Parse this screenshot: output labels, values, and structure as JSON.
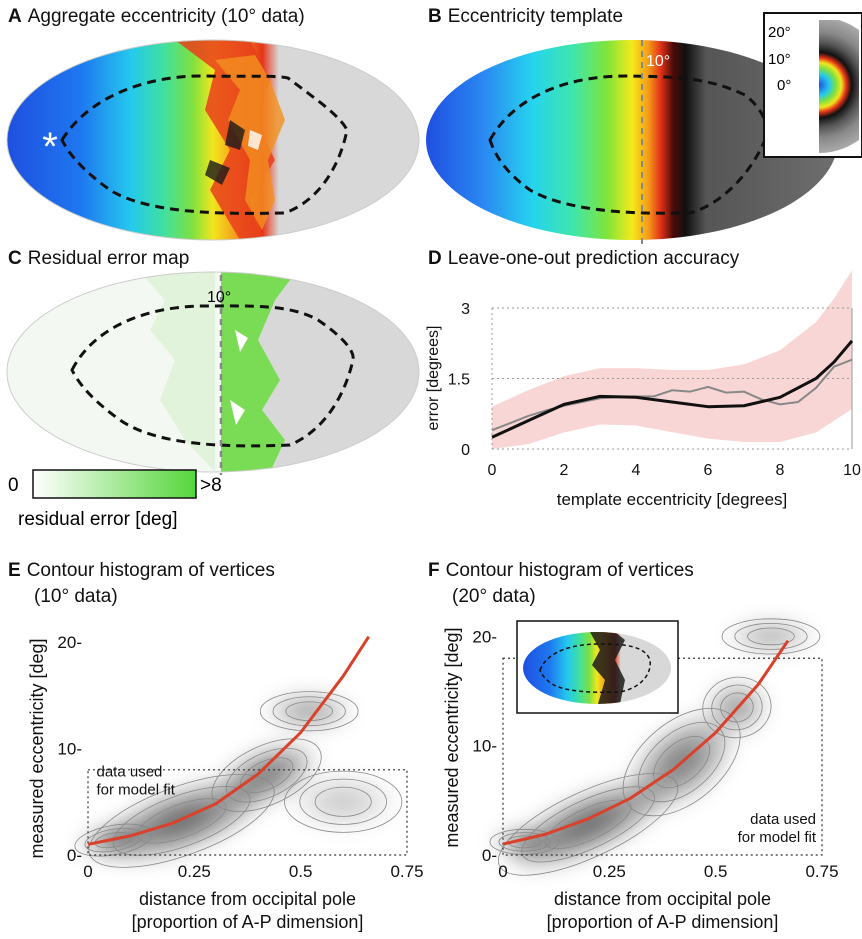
{
  "panels": {
    "A": {
      "letter": "A",
      "title": "Aggregate eccentricity (10° data)",
      "marker": "*"
    },
    "B": {
      "letter": "B",
      "title": "Eccentricity template",
      "line_label": "10°",
      "inset_labels": [
        "20°",
        "10°",
        "0°"
      ]
    },
    "C": {
      "letter": "C",
      "title": "Residual error map",
      "line_label": "10°",
      "colorbar_min": "0",
      "colorbar_max": ">8",
      "colorbar_label": "residual error [deg]"
    },
    "D": {
      "letter": "D",
      "title": "Leave-one-out prediction accuracy"
    },
    "E": {
      "letter": "E",
      "title_line1": "Contour histogram of vertices",
      "title_line2": "(10° data)",
      "box_label_line1": "data used",
      "box_label_line2": "for model fit"
    },
    "F": {
      "letter": "F",
      "title_line1": "Contour histogram of vertices",
      "title_line2": "(20° data)",
      "box_label_line1": "data used",
      "box_label_line2": "for model fit"
    }
  },
  "colors": {
    "fit_curve": "#d9412b",
    "fit_band": "#f7c8c8",
    "mean_line": "#111111",
    "data_line": "#888888"
  },
  "chart_data": [
    {
      "id": "D",
      "type": "line",
      "xlabel": "template eccentricity [degrees]",
      "ylabel": "error [degrees]",
      "xlim": [
        0,
        10
      ],
      "ylim": [
        0,
        3
      ],
      "x_ticks": [
        0,
        2,
        4,
        6,
        8,
        10
      ],
      "x_tick_labels": [
        "0",
        "2",
        "4",
        "6",
        "8",
        "10"
      ],
      "y_ticks": [
        0,
        1.5,
        3
      ],
      "y_tick_labels": [
        "0",
        "1.5",
        "3"
      ],
      "grid_lines_y": [
        1.5,
        3
      ],
      "series": [
        {
          "role": "fit",
          "x": [
            0,
            1,
            2,
            3,
            4,
            5,
            6,
            7,
            8,
            9,
            9.5,
            10
          ],
          "y": [
            0.25,
            0.6,
            0.95,
            1.12,
            1.1,
            1.0,
            0.9,
            0.92,
            1.1,
            1.5,
            1.85,
            2.3
          ]
        },
        {
          "role": "band_upper",
          "x": [
            0,
            1,
            2,
            3,
            4,
            5,
            6,
            7,
            8,
            9,
            9.5,
            10
          ],
          "y": [
            0.9,
            1.25,
            1.55,
            1.72,
            1.72,
            1.68,
            1.68,
            1.8,
            2.1,
            2.7,
            3.2,
            3.8
          ]
        },
        {
          "role": "band_lower",
          "x": [
            0,
            1,
            2,
            3,
            4,
            5,
            6,
            7,
            8,
            9,
            9.5,
            10
          ],
          "y": [
            0.0,
            0.1,
            0.35,
            0.52,
            0.5,
            0.36,
            0.22,
            0.15,
            0.15,
            0.35,
            0.6,
            0.85
          ]
        },
        {
          "role": "data",
          "x": [
            0,
            0.5,
            1,
            1.5,
            2,
            2.5,
            3,
            3.5,
            4,
            4.5,
            5,
            5.5,
            6,
            6.5,
            7,
            7.5,
            8,
            8.5,
            9,
            9.5,
            10
          ],
          "y": [
            0.4,
            0.55,
            0.7,
            0.82,
            0.92,
            1.0,
            1.08,
            1.1,
            1.12,
            1.12,
            1.25,
            1.22,
            1.32,
            1.2,
            1.22,
            1.05,
            0.95,
            1.0,
            1.3,
            1.75,
            1.9
          ]
        }
      ]
    },
    {
      "id": "E",
      "type": "heatmap",
      "xlabel": "distance from occipital pole",
      "xlabel2": "[proportion of A-P dimension]",
      "ylabel": "measured eccentricity [deg]",
      "xlim": [
        0,
        0.75
      ],
      "ylim": [
        0,
        20
      ],
      "x_ticks": [
        0,
        0.25,
        0.5,
        0.75
      ],
      "x_tick_labels": [
        "0",
        "0.25",
        "0.5",
        "0.75"
      ],
      "y_ticks": [
        0,
        10,
        20
      ],
      "y_tick_labels": [
        "0",
        "10",
        "20"
      ],
      "fit_box": {
        "x": [
          0,
          0.75
        ],
        "y": [
          0,
          8
        ]
      },
      "fit_curve": {
        "x": [
          0,
          0.1,
          0.2,
          0.3,
          0.4,
          0.5,
          0.6,
          0.66
        ],
        "y": [
          1.0,
          1.8,
          3.0,
          4.8,
          7.6,
          11.5,
          16.8,
          20.5
        ]
      },
      "blobs": [
        {
          "x": 0.22,
          "y": 3.2,
          "rx": 0.2,
          "ry": 2.8,
          "rot": -20,
          "w": 1.0
        },
        {
          "x": 0.42,
          "y": 7.5,
          "rx": 0.12,
          "ry": 2.4,
          "rot": -25,
          "w": 0.85
        },
        {
          "x": 0.06,
          "y": 1.4,
          "rx": 0.08,
          "ry": 1.2,
          "rot": -10,
          "w": 0.9
        },
        {
          "x": 0.52,
          "y": 13.5,
          "rx": 0.1,
          "ry": 1.6,
          "rot": 0,
          "w": 0.6
        },
        {
          "x": 0.6,
          "y": 5.0,
          "rx": 0.12,
          "ry": 2.5,
          "rot": 0,
          "w": 0.3
        }
      ]
    },
    {
      "id": "F",
      "type": "heatmap",
      "xlabel": "distance from occipital pole",
      "xlabel2": "[proportion of A-P dimension]",
      "ylabel": "measured eccentricity [deg]",
      "xlim": [
        0,
        0.75
      ],
      "ylim": [
        0,
        21.5
      ],
      "x_ticks": [
        0,
        0.25,
        0.5,
        0.75
      ],
      "x_tick_labels": [
        "0",
        "0.25",
        "0.5",
        "0.75"
      ],
      "y_ticks": [
        0,
        10,
        20
      ],
      "y_tick_labels": [
        "0",
        "10",
        "20"
      ],
      "fit_box": {
        "x": [
          0,
          0.75
        ],
        "y": [
          0,
          18
        ]
      },
      "fit_curve": {
        "x": [
          0,
          0.1,
          0.2,
          0.3,
          0.4,
          0.5,
          0.6,
          0.67
        ],
        "y": [
          1.0,
          1.9,
          3.3,
          5.2,
          7.8,
          11.2,
          15.6,
          19.6
        ]
      },
      "blobs": [
        {
          "x": 0.2,
          "y": 2.8,
          "rx": 0.2,
          "ry": 2.6,
          "rot": -25,
          "w": 1.0
        },
        {
          "x": 0.42,
          "y": 8.5,
          "rx": 0.14,
          "ry": 3.2,
          "rot": -40,
          "w": 0.8
        },
        {
          "x": 0.55,
          "y": 13.5,
          "rx": 0.07,
          "ry": 2.4,
          "rot": -10,
          "w": 0.6
        },
        {
          "x": 0.63,
          "y": 20.0,
          "rx": 0.1,
          "ry": 1.4,
          "rot": 0,
          "w": 0.5
        },
        {
          "x": 0.05,
          "y": 1.2,
          "rx": 0.07,
          "ry": 1.0,
          "rot": 0,
          "w": 0.9
        }
      ]
    }
  ]
}
